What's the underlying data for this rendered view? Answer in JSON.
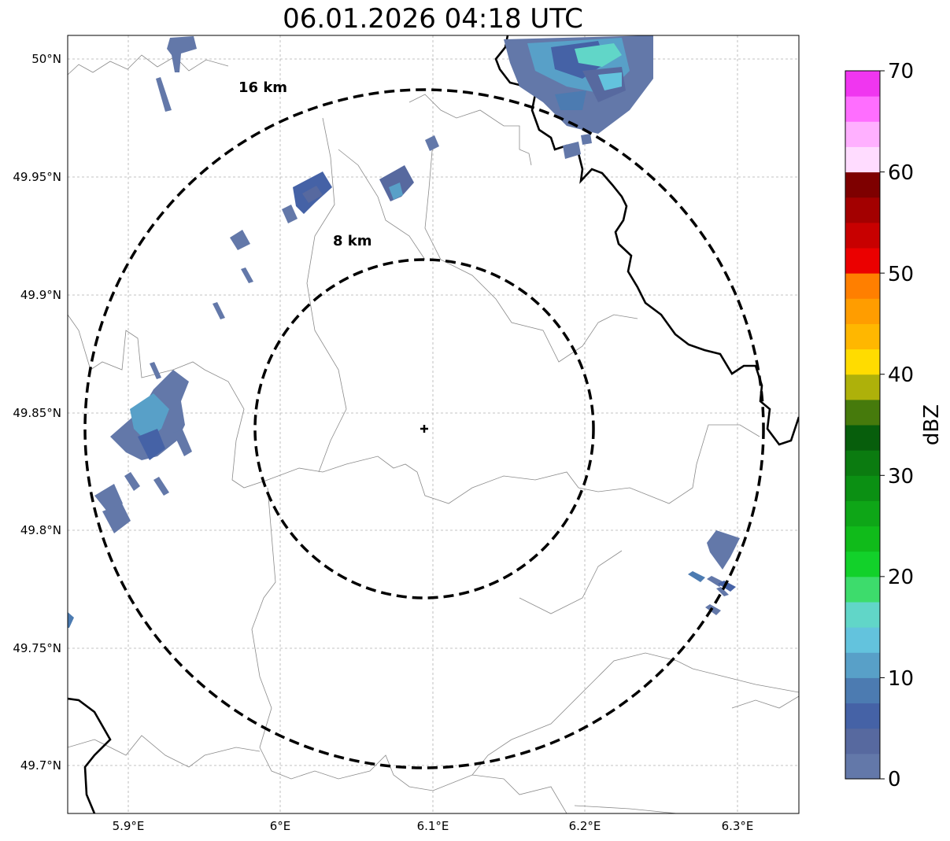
{
  "title": "06.01.2026 04:18 UTC",
  "map": {
    "x_ticks": [
      "5.9°E",
      "6°E",
      "6.1°E",
      "6.2°E",
      "6.3°E"
    ],
    "y_ticks": [
      "50°N",
      "49.95°N",
      "49.9°N",
      "49.85°N",
      "49.8°N",
      "49.75°N",
      "49.7°N"
    ],
    "rings": [
      {
        "label": "8 km",
        "radius_km": 8
      },
      {
        "label": "16 km",
        "radius_km": 16
      }
    ],
    "center_marker": "radar-center-cross-icon"
  },
  "colorbar": {
    "label": "dBZ",
    "ticks": [
      "0",
      "10",
      "20",
      "30",
      "40",
      "50",
      "60",
      "70"
    ],
    "colors": [
      "#6378a9",
      "#57699f",
      "#4562a6",
      "#4c7bb1",
      "#58a0c8",
      "#63c3dd",
      "#61d6c8",
      "#3ddc6c",
      "#12d12a",
      "#10bb1a",
      "#0ea617",
      "#0b9013",
      "#0b7b10",
      "#075e0c",
      "#467a0c",
      "#aeb10a",
      "#ffdc00",
      "#ffb700",
      "#ff9d00",
      "#ff7f00",
      "#eb0000",
      "#c80000",
      "#a30000",
      "#7e0000",
      "#ffdcff",
      "#ffb0ff",
      "#ff6eff",
      "#f036f0"
    ]
  }
}
